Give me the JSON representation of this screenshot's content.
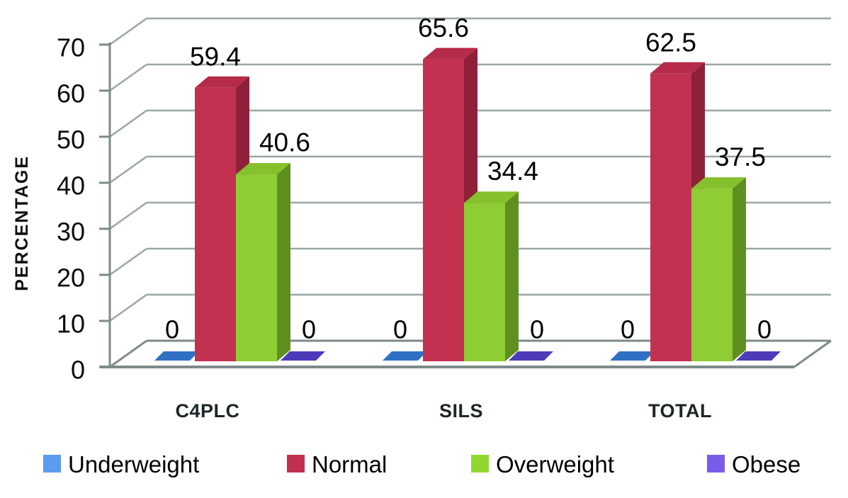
{
  "chart_data": {
    "type": "bar",
    "projection": "3d-clustered-column",
    "title": "",
    "categories": [
      "C4PLC",
      "SILS",
      "TOTAL"
    ],
    "series": [
      {
        "name": "Underweight",
        "values": [
          0,
          0,
          0
        ],
        "color": "#2f70c4",
        "color_top": "#2f70c4",
        "color_side": "#2f70c4",
        "legend_color": "#5b9bf0"
      },
      {
        "name": "Normal",
        "values": [
          59.4,
          65.6,
          62.5
        ],
        "color": "#c23150",
        "color_top": "#b52b49",
        "color_side": "#8e2039",
        "legend_color": "#c2304e"
      },
      {
        "name": "Overweight",
        "values": [
          40.6,
          34.4,
          37.5
        ],
        "color": "#8ecd33",
        "color_top": "#86c02c",
        "color_side": "#5f8f1e",
        "legend_color": "#8fd92e"
      },
      {
        "name": "Obese",
        "values": [
          0,
          0,
          0
        ],
        "color": "#4e3bba",
        "color_top": "#4e3bba",
        "color_side": "#4e3bba",
        "legend_color": "#7a5cec"
      }
    ],
    "data_labels": {
      "normal": [
        "59.4",
        "65.6",
        "62.5"
      ],
      "overweight": [
        "40.6",
        "34.4",
        "37.5"
      ],
      "underweight": [
        "0",
        "0",
        "0"
      ],
      "obese": [
        "0",
        "0",
        "0"
      ]
    },
    "y_axis": {
      "label": "PERCENTAGE",
      "min": 0,
      "max": 70,
      "step": 10,
      "tick_labels": [
        "0",
        "10",
        "20",
        "30",
        "40",
        "50",
        "60",
        "70"
      ]
    },
    "grid": {
      "shown": true,
      "gridline_color": "#9aa6a4",
      "axis_color": "#7e8a89"
    },
    "legend": {
      "position": "bottom",
      "items": [
        "Underweight",
        "Normal",
        "Overweight",
        "Obese"
      ]
    },
    "background_color": "#ffffff",
    "text_color": "#000000"
  }
}
